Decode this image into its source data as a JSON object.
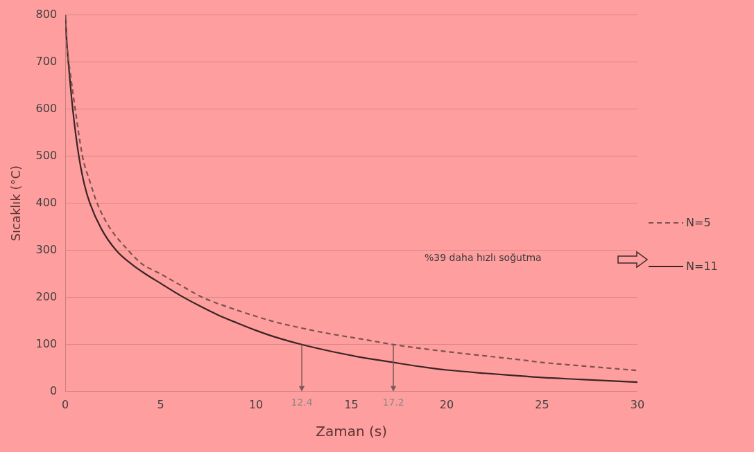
{
  "chart_data": {
    "type": "line",
    "xlabel": "Zaman (s)",
    "ylabel": "Sıcaklık (°C)",
    "xlim": [
      0,
      30
    ],
    "xticks": [
      0,
      5,
      10,
      15,
      20,
      25,
      30
    ],
    "ylim": [
      0,
      800
    ],
    "yticks": [
      0,
      100,
      200,
      300,
      400,
      500,
      600,
      700,
      800
    ],
    "grid": "y",
    "legend": "right",
    "marker": "none",
    "series": [
      {
        "name": "N=5",
        "color": "#7a5252",
        "line_style": "dashed",
        "x": [
          0,
          0.1,
          0.25,
          0.52,
          0.9,
          1.3,
          1.67,
          2.3,
          3.3,
          4,
          5,
          6,
          7.2,
          8.5,
          10,
          11,
          12.4,
          14,
          15.5,
          17.2,
          19,
          20,
          22,
          24,
          25,
          27,
          28.5,
          30
        ],
        "values": [
          800,
          730,
          680,
          600,
          500,
          445,
          400,
          350,
          300,
          272,
          250,
          227,
          200,
          180,
          160,
          148,
          135,
          122,
          112,
          100,
          90,
          85,
          76,
          67,
          62,
          55,
          50,
          45
        ]
      },
      {
        "name": "N=11",
        "color": "#3a2424",
        "line_style": "solid",
        "x": [
          0,
          0.08,
          0.16,
          0.39,
          0.71,
          1.0,
          1.29,
          1.9,
          2.67,
          3.5,
          4.2,
          5,
          6,
          7,
          8,
          9,
          10,
          11,
          12.4,
          14,
          15.5,
          17.2,
          19,
          20,
          22,
          24,
          25,
          27,
          28.5,
          30
        ],
        "values": [
          800,
          740,
          700,
          600,
          500,
          440,
          400,
          345,
          300,
          270,
          250,
          230,
          205,
          183,
          163,
          146,
          130,
          116,
          100,
          85,
          73,
          62,
          51,
          46,
          39,
          33,
          30,
          26,
          23,
          20
        ]
      }
    ],
    "annotations": [
      {
        "text": "12.4",
        "x": 12.4,
        "y": 100
      },
      {
        "text": "17.2",
        "x": 17.2,
        "y": 100
      },
      "%39 daha hızlı soğutma"
    ]
  }
}
